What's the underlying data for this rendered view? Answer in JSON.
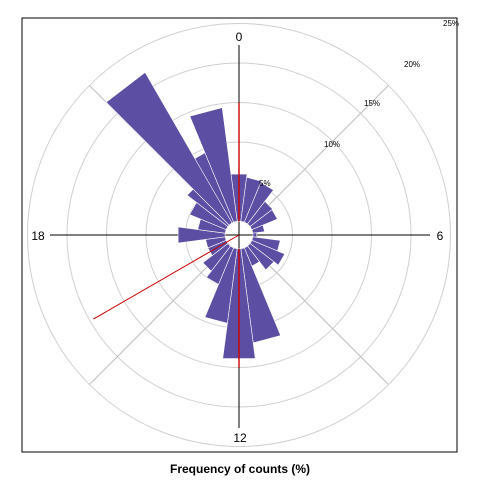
{
  "chart_data": {
    "type": "rose",
    "xlabel": "Frequency of counts (%)",
    "title": "",
    "direction_labels": [
      "0",
      "6",
      "12",
      "18"
    ],
    "ring_labels": [
      "5%",
      "10%",
      "15%",
      "20%",
      "25%"
    ],
    "ring_values": [
      5,
      10,
      15,
      20,
      25
    ],
    "rlim": [
      0,
      25
    ],
    "unit": "hour",
    "period": 24,
    "colors": {
      "bars": "#5b4ea3",
      "mean_line": "#cc0000",
      "axes": "#000000",
      "grid": "#d0d0d0"
    },
    "bins": [
      {
        "hour": 0,
        "value": 6.0
      },
      {
        "hour": 1,
        "value": 5.6
      },
      {
        "hour": 2,
        "value": 5.4
      },
      {
        "hour": 3,
        "value": 3.6
      },
      {
        "hour": 4,
        "value": 3.5
      },
      {
        "hour": 5,
        "value": 1.5
      },
      {
        "hour": 6,
        "value": 0.5
      },
      {
        "hour": 7,
        "value": 3.5
      },
      {
        "hour": 8,
        "value": 4.5
      },
      {
        "hour": 9,
        "value": 3.8
      },
      {
        "hour": 10,
        "value": 2.5
      },
      {
        "hour": 11,
        "value": 12.0
      },
      {
        "hour": 12,
        "value": 14.0
      },
      {
        "hour": 13,
        "value": 9.5
      },
      {
        "hour": 14,
        "value": 5.0
      },
      {
        "hour": 15,
        "value": 4.0
      },
      {
        "hour": 16,
        "value": 2.5
      },
      {
        "hour": 17,
        "value": 2.5
      },
      {
        "hour": 18,
        "value": 6.0
      },
      {
        "hour": 19,
        "value": 3.5
      },
      {
        "hour": 20,
        "value": 5.0
      },
      {
        "hour": 21,
        "value": 6.5
      },
      {
        "hour": 22,
        "value": 9.5
      },
      {
        "hour": 23,
        "value": 14.5
      },
      {
        "hour": 21.5,
        "value": 22.0,
        "extended": true
      }
    ],
    "mean_line": {
      "hour": 16.0,
      "value": 19.5
    },
    "vertical_marker": {
      "hours": [
        0,
        12
      ],
      "value": 15.0
    }
  }
}
